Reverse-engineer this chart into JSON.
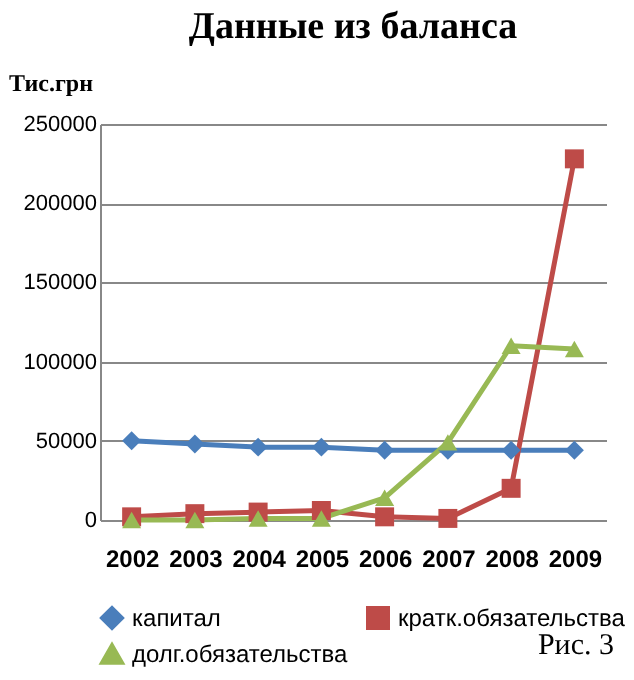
{
  "chart_data": {
    "type": "line",
    "title": "Данные из баланса",
    "ylabel": "Тис.грн",
    "categories": [
      "2002",
      "2003",
      "2004",
      "2005",
      "2006",
      "2007",
      "2008",
      "2009"
    ],
    "series": [
      {
        "name": "капитал",
        "color": "#4a7ebb",
        "marker": "diamond",
        "values": [
          50000,
          48000,
          46000,
          46000,
          44000,
          44000,
          44000,
          44000
        ]
      },
      {
        "name": "кратк.обязательства",
        "color": "#be4b48",
        "marker": "square",
        "values": [
          2000,
          4000,
          5000,
          6000,
          2000,
          1000,
          20000,
          228000
        ]
      },
      {
        "name": "долг.обязательства",
        "color": "#98b954",
        "marker": "triangle",
        "values": [
          0,
          0,
          1000,
          1000,
          14000,
          49000,
          110000,
          108000
        ]
      }
    ],
    "ylim": [
      0,
      250000
    ],
    "yticks": [
      0,
      50000,
      100000,
      150000,
      200000,
      250000
    ],
    "grid": "y",
    "legend": "bottom",
    "annotations": [
      "Рис. 3"
    ]
  }
}
